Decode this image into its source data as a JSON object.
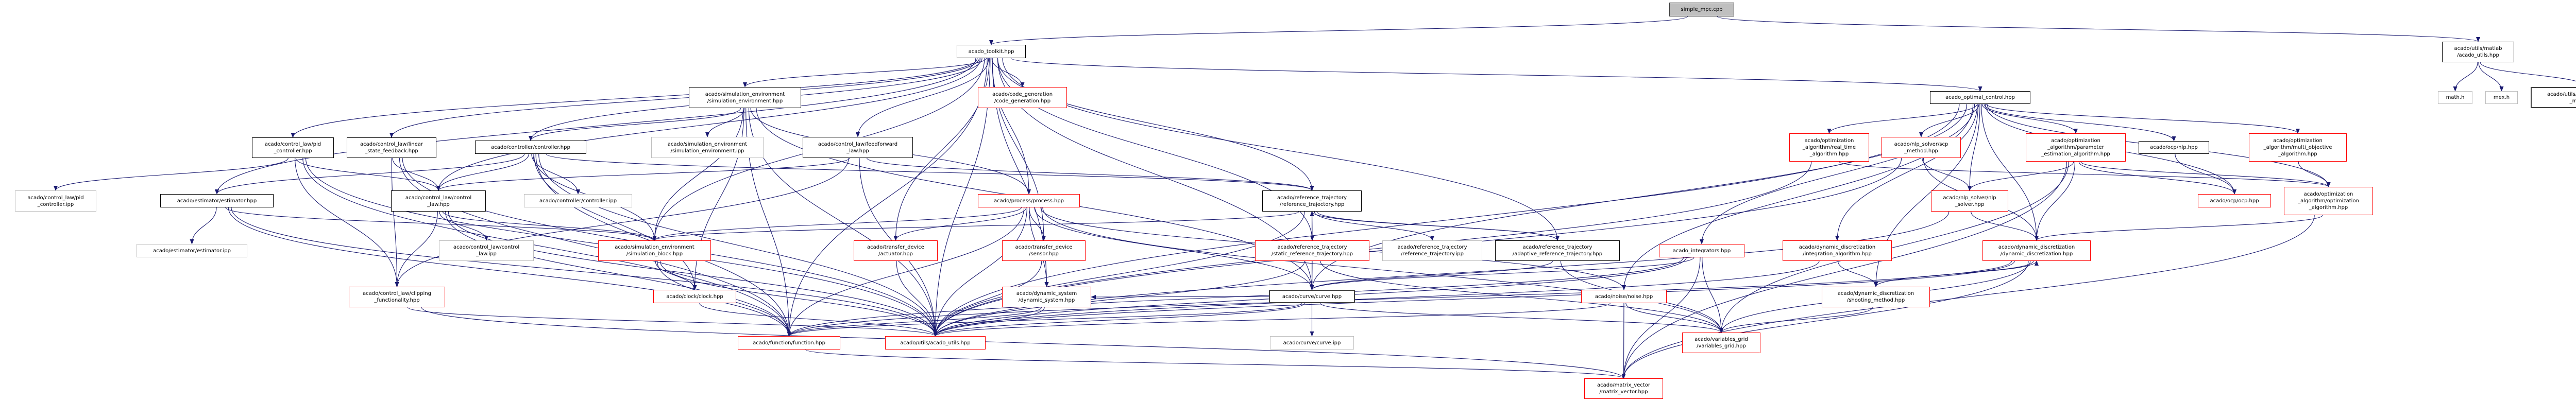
{
  "colors": {
    "edge": "#191970",
    "documented_border": "#000000",
    "truncated_border": "#ff0000",
    "undocumented_border": "#bfbfbf",
    "root_fill": "#bfbfbf"
  },
  "nodes": [
    {
      "id": "simple_mpc",
      "label": "simple_mpc.cpp",
      "kind": "root"
    },
    {
      "id": "toolkit",
      "label": "acado_toolkit.hpp",
      "kind": "documented"
    },
    {
      "id": "matlab_utils",
      "label": "acado/utils/matlab\n/acado_utils.hpp",
      "kind": "documented"
    },
    {
      "id": "math_h",
      "label": "math.h",
      "kind": "undocumented"
    },
    {
      "id": "mex_h",
      "label": "mex.h",
      "kind": "undocumented"
    },
    {
      "id": "ns_macros",
      "label": "acado/utils/acado_namespace\n_macros.hpp",
      "kind": "documented-dark"
    },
    {
      "id": "optimal_control",
      "label": "acado_optimal_control.hpp",
      "kind": "documented"
    },
    {
      "id": "sim_env",
      "label": "acado/simulation_environment\n/simulation_environment.hpp",
      "kind": "documented"
    },
    {
      "id": "code_gen",
      "label": "acado/code_generation\n/code_generation.hpp",
      "kind": "truncated"
    },
    {
      "id": "pid",
      "label": "acado/control_law/pid\n_controller.hpp",
      "kind": "documented"
    },
    {
      "id": "lsf",
      "label": "acado/control_law/linear\n_state_feedback.hpp",
      "kind": "documented"
    },
    {
      "id": "controller",
      "label": "acado/controller/controller.hpp",
      "kind": "documented"
    },
    {
      "id": "sim_env_ipp",
      "label": "acado/simulation_environment\n/simulation_environment.ipp",
      "kind": "undocumented"
    },
    {
      "id": "feedforward",
      "label": "acado/control_law/feedforward\n_law.hpp",
      "kind": "documented"
    },
    {
      "id": "real_time",
      "label": "acado/optimization\n_algorithm/real_time\n_algorithm.hpp",
      "kind": "truncated"
    },
    {
      "id": "scp",
      "label": "acado/nlp_solver/scp\n_method.hpp",
      "kind": "truncated"
    },
    {
      "id": "param_est",
      "label": "acado/optimization\n_algorithm/parameter\n_estimation_algorithm.hpp",
      "kind": "truncated"
    },
    {
      "id": "ocp_nlp",
      "label": "acado/ocp/nlp.hpp",
      "kind": "documented"
    },
    {
      "id": "multi_obj",
      "label": "acado/optimization\n_algorithm/multi_objective\n_algorithm.hpp",
      "kind": "truncated"
    },
    {
      "id": "pid_ipp",
      "label": "acado/control_law/pid\n_controller.ipp",
      "kind": "undocumented"
    },
    {
      "id": "estimator",
      "label": "acado/estimator/estimator.hpp",
      "kind": "documented"
    },
    {
      "id": "control_law",
      "label": "acado/control_law/control\n_law.hpp",
      "kind": "documented"
    },
    {
      "id": "controller_ipp",
      "label": "acado/controller/controller.ipp",
      "kind": "undocumented"
    },
    {
      "id": "process",
      "label": "acado/process/process.hpp",
      "kind": "truncated"
    },
    {
      "id": "ref_traj",
      "label": "acado/reference_trajectory\n/reference_trajectory.hpp",
      "kind": "documented"
    },
    {
      "id": "nlp_solver",
      "label": "acado/nlp_solver/nlp\n_solver.hpp",
      "kind": "truncated"
    },
    {
      "id": "ocp_ocp",
      "label": "acado/ocp/ocp.hpp",
      "kind": "truncated"
    },
    {
      "id": "opt_alg",
      "label": "acado/optimization\n_algorithm/optimization\n_algorithm.hpp",
      "kind": "truncated"
    },
    {
      "id": "estimator_ipp",
      "label": "acado/estimator/estimator.ipp",
      "kind": "undocumented"
    },
    {
      "id": "control_law_ipp",
      "label": "acado/control_law/control\n_law.ipp",
      "kind": "undocumented"
    },
    {
      "id": "sim_block",
      "label": "acado/simulation_environment\n/simulation_block.hpp",
      "kind": "truncated"
    },
    {
      "id": "actuator",
      "label": "acado/transfer_device\n/actuator.hpp",
      "kind": "truncated"
    },
    {
      "id": "sensor",
      "label": "acado/transfer_device\n/sensor.hpp",
      "kind": "truncated"
    },
    {
      "id": "static_ref",
      "label": "acado/reference_trajectory\n/static_reference_trajectory.hpp",
      "kind": "truncated"
    },
    {
      "id": "ref_traj_ipp",
      "label": "acado/reference_trajectory\n/reference_trajectory.ipp",
      "kind": "undocumented"
    },
    {
      "id": "adaptive_ref",
      "label": "acado/reference_trajectory\n/adaptive_reference_trajectory.hpp",
      "kind": "documented"
    },
    {
      "id": "integrators",
      "label": "acado_integrators.hpp",
      "kind": "truncated"
    },
    {
      "id": "integration_alg",
      "label": "acado/dynamic_discretization\n/integration_algorithm.hpp",
      "kind": "truncated"
    },
    {
      "id": "dyn_disc",
      "label": "acado/dynamic_discretization\n/dynamic_discretization.hpp",
      "kind": "truncated"
    },
    {
      "id": "clipping",
      "label": "acado/control_law/clipping\n_functionality.hpp",
      "kind": "truncated"
    },
    {
      "id": "clock",
      "label": "acado/clock/clock.hpp",
      "kind": "truncated"
    },
    {
      "id": "dyn_sys",
      "label": "acado/dynamic_system\n/dynamic_system.hpp",
      "kind": "truncated"
    },
    {
      "id": "curve",
      "label": "acado/curve/curve.hpp",
      "kind": "documented-dark"
    },
    {
      "id": "noise",
      "label": "acado/noise/noise.hpp",
      "kind": "truncated"
    },
    {
      "id": "shooting",
      "label": "acado/dynamic_discretization\n/shooting_method.hpp",
      "kind": "truncated"
    },
    {
      "id": "function",
      "label": "acado/function/function.hpp",
      "kind": "truncated"
    },
    {
      "id": "utils",
      "label": "acado/utils/acado_utils.hpp",
      "kind": "truncated"
    },
    {
      "id": "curve_ipp",
      "label": "acado/curve/curve.ipp",
      "kind": "undocumented"
    },
    {
      "id": "vars_grid",
      "label": "acado/variables_grid\n/variables_grid.hpp",
      "kind": "truncated"
    },
    {
      "id": "matrix_vector",
      "label": "acado/matrix_vector\n/matrix_vector.hpp",
      "kind": "truncated"
    }
  ],
  "edges": [
    [
      "simple_mpc",
      "toolkit"
    ],
    [
      "simple_mpc",
      "matlab_utils"
    ],
    [
      "matlab_utils",
      "math_h"
    ],
    [
      "matlab_utils",
      "mex_h"
    ],
    [
      "matlab_utils",
      "ns_macros"
    ],
    [
      "toolkit",
      "optimal_control"
    ],
    [
      "toolkit",
      "sim_env"
    ],
    [
      "toolkit",
      "code_gen"
    ],
    [
      "toolkit",
      "pid"
    ],
    [
      "toolkit",
      "lsf"
    ],
    [
      "toolkit",
      "controller"
    ],
    [
      "toolkit",
      "feedforward"
    ],
    [
      "toolkit",
      "estimator"
    ],
    [
      "toolkit",
      "control_law"
    ],
    [
      "toolkit",
      "process"
    ],
    [
      "toolkit",
      "ref_traj"
    ],
    [
      "toolkit",
      "static_ref"
    ],
    [
      "toolkit",
      "adaptive_ref"
    ],
    [
      "toolkit",
      "dyn_sys"
    ],
    [
      "toolkit",
      "actuator"
    ],
    [
      "toolkit",
      "sensor"
    ],
    [
      "toolkit",
      "curve"
    ],
    [
      "toolkit",
      "function"
    ],
    [
      "toolkit",
      "utils"
    ],
    [
      "toolkit",
      "sim_block"
    ],
    [
      "sim_env",
      "sim_env_ipp"
    ],
    [
      "sim_env",
      "controller"
    ],
    [
      "sim_env",
      "process"
    ],
    [
      "sim_env",
      "sim_block"
    ],
    [
      "sim_env",
      "clock"
    ],
    [
      "sim_env",
      "curve"
    ],
    [
      "sim_env",
      "utils"
    ],
    [
      "sim_env",
      "function"
    ],
    [
      "pid",
      "pid_ipp"
    ],
    [
      "pid",
      "control_law"
    ],
    [
      "pid",
      "clipping"
    ],
    [
      "pid",
      "utils"
    ],
    [
      "pid",
      "function"
    ],
    [
      "lsf",
      "control_law"
    ],
    [
      "lsf",
      "clipping"
    ],
    [
      "lsf",
      "utils"
    ],
    [
      "lsf",
      "function"
    ],
    [
      "controller",
      "controller_ipp"
    ],
    [
      "controller",
      "control_law"
    ],
    [
      "controller",
      "estimator"
    ],
    [
      "controller",
      "sim_block"
    ],
    [
      "controller",
      "ref_traj"
    ],
    [
      "controller",
      "utils"
    ],
    [
      "controller",
      "clock"
    ],
    [
      "controller",
      "function"
    ],
    [
      "feedforward",
      "control_law"
    ],
    [
      "feedforward",
      "ref_traj"
    ],
    [
      "feedforward",
      "utils"
    ],
    [
      "feedforward",
      "clipping"
    ],
    [
      "estimator",
      "estimator_ipp"
    ],
    [
      "estimator",
      "sim_block"
    ],
    [
      "estimator",
      "utils"
    ],
    [
      "estimator",
      "function"
    ],
    [
      "control_law",
      "control_law_ipp"
    ],
    [
      "control_law",
      "sim_block"
    ],
    [
      "control_law",
      "utils"
    ],
    [
      "control_law",
      "function"
    ],
    [
      "control_law",
      "clipping"
    ],
    [
      "process",
      "sim_block"
    ],
    [
      "process",
      "actuator"
    ],
    [
      "process",
      "sensor"
    ],
    [
      "process",
      "dyn_sys"
    ],
    [
      "process",
      "curve"
    ],
    [
      "process",
      "noise"
    ],
    [
      "process",
      "utils"
    ],
    [
      "process",
      "function"
    ],
    [
      "process",
      "vars_grid"
    ],
    [
      "ref_traj",
      "static_ref"
    ],
    [
      "ref_traj",
      "ref_traj_ipp"
    ],
    [
      "ref_traj",
      "adaptive_ref"
    ],
    [
      "ref_traj",
      "sim_block"
    ],
    [
      "ref_traj",
      "curve"
    ],
    [
      "ref_traj",
      "utils"
    ],
    [
      "static_ref",
      "ref_traj"
    ],
    [
      "static_ref",
      "curve"
    ],
    [
      "static_ref",
      "utils"
    ],
    [
      "static_ref",
      "vars_grid"
    ],
    [
      "adaptive_ref",
      "ref_traj"
    ],
    [
      "adaptive_ref",
      "curve"
    ],
    [
      "adaptive_ref",
      "vars_grid"
    ],
    [
      "sim_block",
      "clock"
    ],
    [
      "sim_block",
      "utils"
    ],
    [
      "sim_block",
      "function"
    ],
    [
      "actuator",
      "utils"
    ],
    [
      "sensor",
      "utils"
    ],
    [
      "clipping",
      "utils"
    ],
    [
      "clipping",
      "matrix_vector"
    ],
    [
      "clock",
      "utils"
    ],
    [
      "dyn_sys",
      "function"
    ],
    [
      "dyn_sys",
      "utils"
    ],
    [
      "curve",
      "curve_ipp"
    ],
    [
      "curve",
      "function"
    ],
    [
      "curve",
      "utils"
    ],
    [
      "curve",
      "vars_grid"
    ],
    [
      "curve",
      "dyn_sys"
    ],
    [
      "optimal_control",
      "real_time"
    ],
    [
      "optimal_control",
      "scp"
    ],
    [
      "optimal_control",
      "param_est"
    ],
    [
      "optimal_control",
      "ocp_nlp"
    ],
    [
      "optimal_control",
      "multi_obj"
    ],
    [
      "optimal_control",
      "nlp_solver"
    ],
    [
      "optimal_control",
      "ocp_ocp"
    ],
    [
      "optimal_control",
      "opt_alg"
    ],
    [
      "optimal_control",
      "integrators"
    ],
    [
      "optimal_control",
      "integration_alg"
    ],
    [
      "optimal_control",
      "dyn_disc"
    ],
    [
      "optimal_control",
      "shooting"
    ],
    [
      "optimal_control",
      "curve"
    ],
    [
      "optimal_control",
      "noise"
    ],
    [
      "optimal_control",
      "utils"
    ],
    [
      "real_time",
      "opt_alg"
    ],
    [
      "real_time",
      "utils"
    ],
    [
      "scp",
      "nlp_solver"
    ],
    [
      "scp",
      "dyn_disc"
    ],
    [
      "scp",
      "utils"
    ],
    [
      "param_est",
      "nlp_solver"
    ],
    [
      "param_est",
      "ocp_ocp"
    ],
    [
      "param_est",
      "opt_alg"
    ],
    [
      "param_est",
      "dyn_disc"
    ],
    [
      "param_est",
      "vars_grid"
    ],
    [
      "param_est",
      "matrix_vector"
    ],
    [
      "ocp_nlp",
      "ocp_ocp"
    ],
    [
      "multi_obj",
      "opt_alg"
    ],
    [
      "nlp_solver",
      "dyn_disc"
    ],
    [
      "nlp_solver",
      "utils"
    ],
    [
      "opt_alg",
      "dyn_disc"
    ],
    [
      "opt_alg",
      "matrix_vector"
    ],
    [
      "integrators",
      "curve"
    ],
    [
      "integrators",
      "function"
    ],
    [
      "integrators",
      "utils"
    ],
    [
      "integrators",
      "vars_grid"
    ],
    [
      "integrators",
      "matrix_vector"
    ],
    [
      "integration_alg",
      "shooting"
    ],
    [
      "integration_alg",
      "utils"
    ],
    [
      "dyn_disc",
      "shooting"
    ],
    [
      "dyn_disc",
      "vars_grid"
    ],
    [
      "dyn_disc",
      "matrix_vector"
    ],
    [
      "dyn_disc",
      "function"
    ],
    [
      "dyn_disc",
      "utils"
    ],
    [
      "shooting",
      "dyn_disc"
    ],
    [
      "shooting",
      "vars_grid"
    ],
    [
      "noise",
      "vars_grid"
    ],
    [
      "noise",
      "matrix_vector"
    ],
    [
      "noise",
      "utils"
    ],
    [
      "function",
      "matrix_vector"
    ]
  ]
}
